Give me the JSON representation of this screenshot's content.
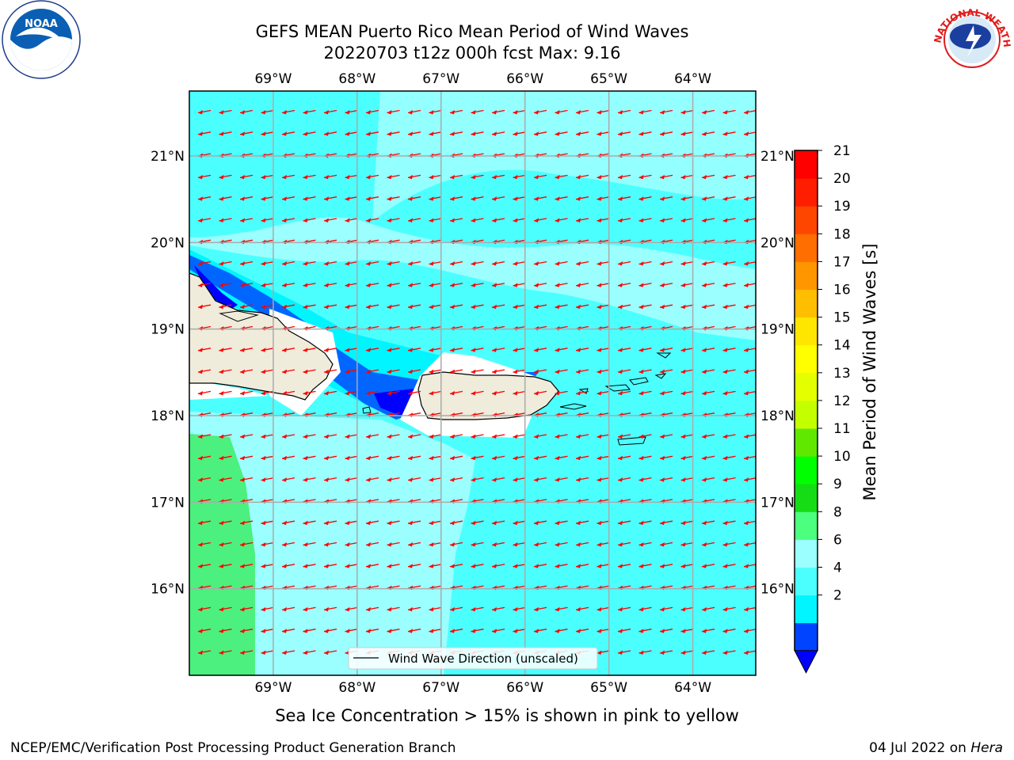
{
  "title": {
    "line1": "GEFS MEAN Puerto Rico Mean Period of Wind Waves",
    "line2": "20220703 t12z 000h fcst   Max: 9.16"
  },
  "logos": {
    "left": {
      "name": "noaa-logo",
      "text": "NOAA",
      "ring_text": "NATIONAL OCEANIC AND ATMOSPHERIC ADMINISTRATION · U.S. DEPARTMENT OF COMMERCE"
    },
    "right": {
      "name": "nws-logo",
      "ring_text": "NATIONAL WEATHER SERVICE"
    }
  },
  "map": {
    "lon_ticks": [
      "69°W",
      "68°W",
      "67°W",
      "66°W",
      "65°W",
      "64°W"
    ],
    "lon_values": [
      -69,
      -68,
      -67,
      -66,
      -65,
      -64
    ],
    "lat_ticks": [
      "21°N",
      "20°N",
      "19°N",
      "18°N",
      "17°N",
      "16°N"
    ],
    "lat_values": [
      21,
      20,
      19,
      18,
      17,
      16
    ],
    "extent": {
      "lon_min": -70.0,
      "lon_max": -63.25,
      "lat_min": 15.0,
      "lat_max": 21.75
    },
    "gridlines": true,
    "vector_color": "#ff0000",
    "wind_direction": "westward (from east), slight south component",
    "legend": {
      "label": "Wind Wave Direction (unscaled)",
      "placement": "bottom-center"
    }
  },
  "colorbar": {
    "label": "Mean Period of Wind Waves [s]",
    "ticks": [
      "21",
      "20",
      "19",
      "18",
      "17",
      "16",
      "15",
      "14",
      "13",
      "12",
      "11",
      "10",
      "9",
      "8",
      "6",
      "4",
      "2"
    ],
    "colors_bottom_to_top": [
      "#0044ff",
      "#00f5ff",
      "#4cffff",
      "#9bffff",
      "#4cff7e",
      "#16dc16",
      "#00ff00",
      "#61e800",
      "#c4ff00",
      "#e4ff00",
      "#ffff00",
      "#ffe600",
      "#ffbe00",
      "#ff9600",
      "#ff6e00",
      "#ff4600",
      "#ff1e00",
      "#ff0000"
    ],
    "extend_color": "#0000ff"
  },
  "footer": {
    "note": "Sea Ice Concentration > 15% is shown in pink to yellow",
    "left": "NCEP/EMC/Verification Post Processing Product Generation Branch",
    "right_prefix": "04 Jul 2022 on ",
    "right_host": "Hera"
  }
}
